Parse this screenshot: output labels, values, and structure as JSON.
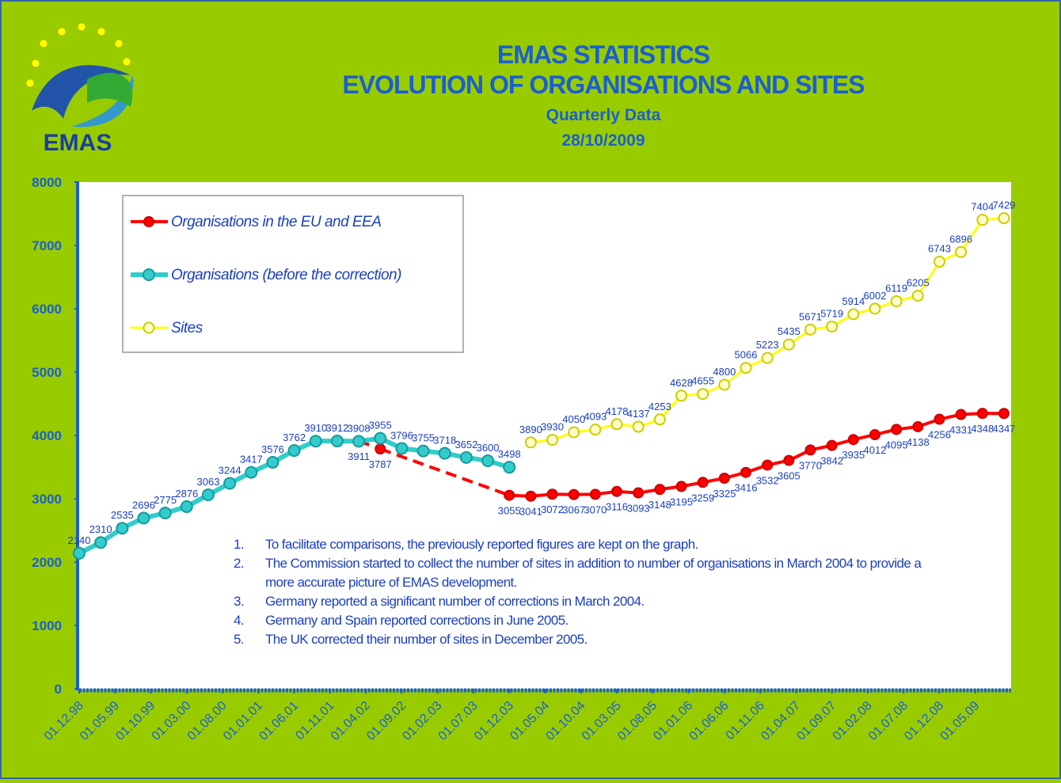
{
  "logo_text": "EMAS",
  "chart_data": {
    "type": "line",
    "title": "EMAS STATISTICS",
    "subtitle": "EVOLUTION OF ORGANISATIONS AND SITES",
    "subtitle2": "Quarterly Data",
    "date": "28/10/2009",
    "x": [
      "1998-12-01",
      "1999-03-01",
      "1999-06-01",
      "1999-09-01",
      "1999-12-01",
      "2000-03-01",
      "2000-06-01",
      "2000-09-01",
      "2000-12-01",
      "2001-03-01",
      "2001-06-01",
      "2001-09-01",
      "2001-12-01",
      "2002-03-01",
      "2002-06-01",
      "2002-09-01",
      "2002-12-01",
      "2003-03-01",
      "2003-06-01",
      "2003-09-01",
      "2003-12-01",
      "2004-03-01",
      "2004-06-01",
      "2004-09-01",
      "2004-12-01",
      "2005-03-01",
      "2005-06-01",
      "2005-09-01",
      "2005-12-01",
      "2006-03-01",
      "2006-06-01",
      "2006-09-01",
      "2006-12-01",
      "2007-03-01",
      "2007-06-01",
      "2007-09-01",
      "2007-12-01",
      "2008-03-01",
      "2008-06-01",
      "2008-09-01",
      "2008-12-01",
      "2009-03-01",
      "2009-06-01",
      "2009-09-01"
    ],
    "xlim": [
      "1998-12-01",
      "2009-10-01"
    ],
    "xticks": [
      {
        "value": "1998-12-01",
        "label": "01.12.98"
      },
      {
        "value": "1999-05-01",
        "label": "01.05.99"
      },
      {
        "value": "1999-10-01",
        "label": "01.10.99"
      },
      {
        "value": "2000-03-01",
        "label": "01.03.00"
      },
      {
        "value": "2000-08-01",
        "label": "01.08.00"
      },
      {
        "value": "2001-01-01",
        "label": "01.01.01"
      },
      {
        "value": "2001-06-01",
        "label": "01.06.01"
      },
      {
        "value": "2001-11-01",
        "label": "01.11.01"
      },
      {
        "value": "2002-04-01",
        "label": "01.04.02"
      },
      {
        "value": "2002-09-01",
        "label": "01.09.02"
      },
      {
        "value": "2003-02-01",
        "label": "01.02.03"
      },
      {
        "value": "2003-07-01",
        "label": "01.07.03"
      },
      {
        "value": "2003-12-01",
        "label": "01.12.03"
      },
      {
        "value": "2004-05-01",
        "label": "01.05.04"
      },
      {
        "value": "2004-10-01",
        "label": "01.10.04"
      },
      {
        "value": "2005-03-01",
        "label": "01.03.05"
      },
      {
        "value": "2005-08-01",
        "label": "01.08.05"
      },
      {
        "value": "2006-01-01",
        "label": "01.01.06"
      },
      {
        "value": "2006-06-01",
        "label": "01.06.06"
      },
      {
        "value": "2006-11-01",
        "label": "01.11.06"
      },
      {
        "value": "2007-04-01",
        "label": "01.04.07"
      },
      {
        "value": "2007-09-01",
        "label": "01.09.07"
      },
      {
        "value": "2008-02-01",
        "label": "01.02.08"
      },
      {
        "value": "2008-07-01",
        "label": "01.07.08"
      },
      {
        "value": "2008-12-01",
        "label": "01.12.08"
      },
      {
        "value": "2009-05-01",
        "label": "01.05.09"
      }
    ],
    "ylim": [
      0,
      8000
    ],
    "yticks": [
      0,
      1000,
      2000,
      3000,
      4000,
      5000,
      6000,
      7000,
      8000
    ],
    "legend": "upper left",
    "series": [
      {
        "name": "Organisations in the EU and EEA",
        "color": "#ff0000",
        "values": [
          null,
          null,
          null,
          null,
          null,
          null,
          null,
          null,
          null,
          null,
          null,
          null,
          null,
          3911,
          3787,
          null,
          null,
          null,
          null,
          null,
          3055,
          3041,
          3072,
          3067,
          3070,
          3116,
          3093,
          3148,
          3195,
          3259,
          3325,
          3416,
          3532,
          3605,
          3770,
          3842,
          3935,
          4012,
          4095,
          4138,
          4256,
          4331,
          4348,
          4347
        ]
      },
      {
        "name": "Organisations (before the correction)",
        "color": "#33cccc",
        "values": [
          2140,
          2310,
          2535,
          2696,
          2775,
          2876,
          3063,
          3244,
          3417,
          3576,
          3762,
          3910,
          3912,
          3908,
          3955,
          3796,
          3755,
          3718,
          3652,
          3600,
          3498,
          null,
          null,
          null,
          null,
          null,
          null,
          null,
          null,
          null,
          null,
          null,
          null,
          null,
          null,
          null,
          null,
          null,
          null,
          null,
          null,
          null,
          null,
          null
        ]
      },
      {
        "name": "Sites",
        "color": "#ffff00",
        "values": [
          null,
          null,
          null,
          null,
          null,
          null,
          null,
          null,
          null,
          null,
          null,
          null,
          null,
          null,
          null,
          null,
          null,
          null,
          null,
          null,
          null,
          3890,
          3930,
          4050,
          4093,
          4178,
          4137,
          4253,
          4628,
          4655,
          4800,
          5066,
          5223,
          5435,
          5671,
          5719,
          5914,
          6002,
          6119,
          6205,
          6743,
          6896,
          7404,
          7429
        ]
      }
    ],
    "annotations": [
      {
        "label": "1.",
        "text": "To facilitate comparisons, the previously reported figures are kept on the graph."
      },
      {
        "label": "2.",
        "text": "The Commission started to collect the number of sites in addition to number of organisations in March 2004 to provide a more accurate picture of EMAS development."
      },
      {
        "label": "3.",
        "text": "Germany reported a significant number of corrections in March 2004."
      },
      {
        "label": "4.",
        "text": "Germany and Spain reported corrections in June 2005."
      },
      {
        "label": "5.",
        "text": "The UK corrected their number of sites in December 2005."
      }
    ]
  }
}
